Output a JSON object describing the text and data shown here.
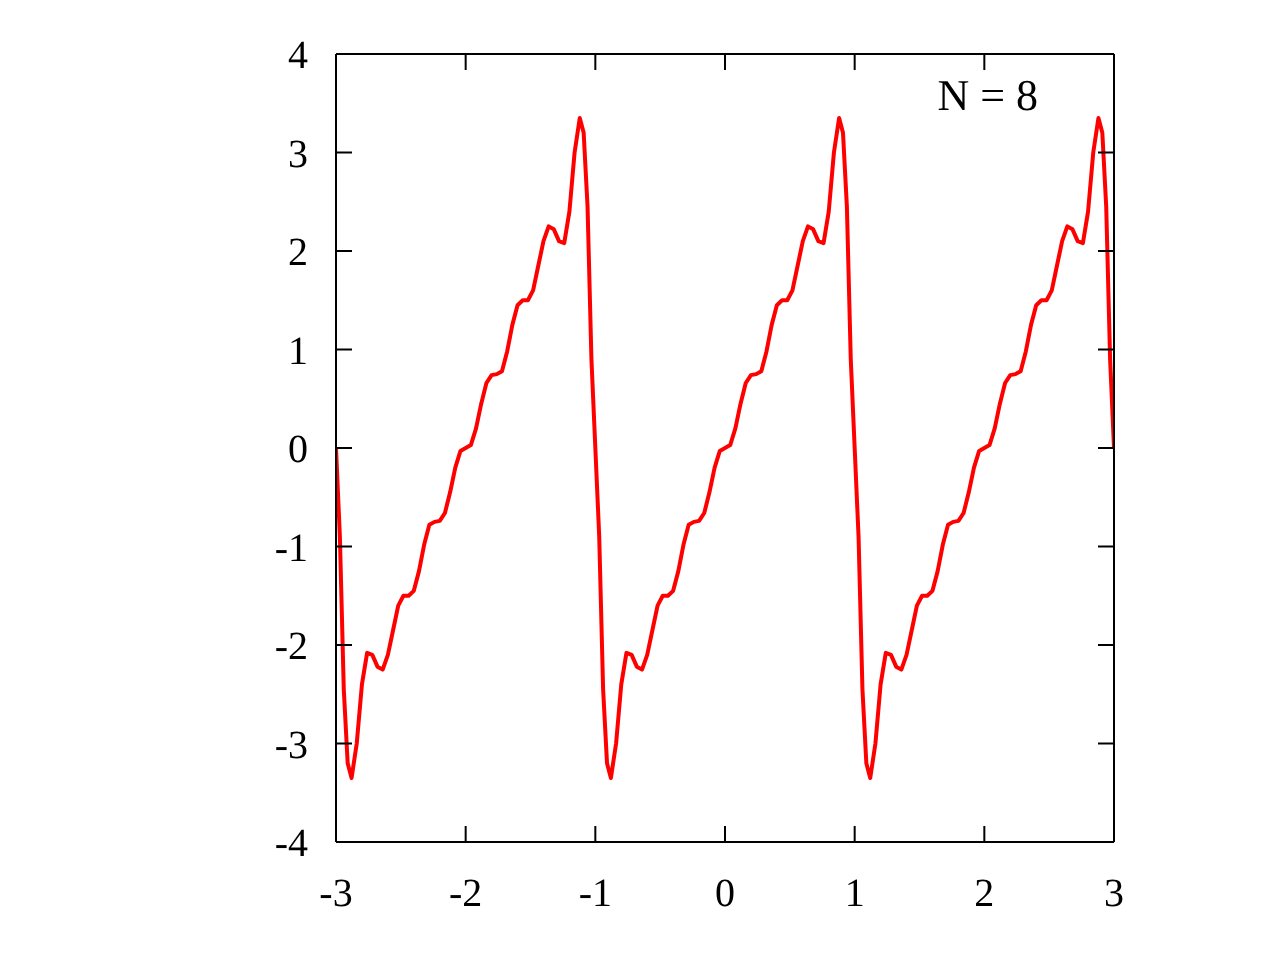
{
  "chart_data": {
    "type": "line",
    "annotations": [
      "N = 8"
    ],
    "x": [
      -3,
      -2.97,
      -2.94,
      -2.91,
      -2.88,
      -2.84,
      -2.8,
      -2.76,
      -2.72,
      -2.68,
      -2.64,
      -2.6,
      -2.56,
      -2.52,
      -2.48,
      -2.44,
      -2.4,
      -2.36,
      -2.32,
      -2.28,
      -2.24,
      -2.2,
      -2.16,
      -2.12,
      -2.08,
      -2.04,
      -2,
      -1.96,
      -1.92,
      -1.88,
      -1.84,
      -1.8,
      -1.76,
      -1.72,
      -1.68,
      -1.64,
      -1.6,
      -1.56,
      -1.52,
      -1.48,
      -1.44,
      -1.4,
      -1.36,
      -1.32,
      -1.28,
      -1.24,
      -1.2,
      -1.16,
      -1.12,
      -1.09,
      -1.06,
      -1.03,
      -1,
      -0.97,
      -0.94,
      -0.91,
      -0.88,
      -0.84,
      -0.8,
      -0.76,
      -0.72,
      -0.68,
      -0.64,
      -0.6,
      -0.56,
      -0.52,
      -0.48,
      -0.44,
      -0.4,
      -0.36,
      -0.32,
      -0.28,
      -0.24,
      -0.2,
      -0.16,
      -0.12,
      -0.08,
      -0.04,
      0,
      0.04,
      0.08,
      0.12,
      0.16,
      0.2,
      0.24,
      0.28,
      0.32,
      0.36,
      0.4,
      0.44,
      0.48,
      0.52,
      0.56,
      0.6,
      0.64,
      0.68,
      0.72,
      0.76,
      0.8,
      0.84,
      0.88,
      0.91,
      0.94,
      0.97,
      1,
      1.03,
      1.06,
      1.09,
      1.12,
      1.16,
      1.2,
      1.24,
      1.28,
      1.32,
      1.36,
      1.4,
      1.44,
      1.48,
      1.52,
      1.56,
      1.6,
      1.64,
      1.68,
      1.72,
      1.76,
      1.8,
      1.84,
      1.88,
      1.92,
      1.96,
      2,
      2.04,
      2.08,
      2.12,
      2.16,
      2.2,
      2.24,
      2.28,
      2.32,
      2.36,
      2.4,
      2.44,
      2.48,
      2.52,
      2.56,
      2.6,
      2.64,
      2.68,
      2.72,
      2.76,
      2.8,
      2.84,
      2.88,
      2.91,
      2.94,
      2.97,
      3
    ],
    "series": [
      {
        "color": "#ff0000",
        "values": [
          0,
          -0.9,
          -2.45,
          -3.2,
          -3.35,
          -3.0,
          -2.4,
          -2.08,
          -2.1,
          -2.22,
          -2.25,
          -2.1,
          -1.85,
          -1.6,
          -1.5,
          -1.5,
          -1.45,
          -1.25,
          -0.98,
          -0.78,
          -0.75,
          -0.74,
          -0.66,
          -0.45,
          -0.2,
          -0.03,
          0,
          0.03,
          0.2,
          0.45,
          0.66,
          0.74,
          0.75,
          0.78,
          0.98,
          1.25,
          1.45,
          1.5,
          1.5,
          1.6,
          1.85,
          2.1,
          2.25,
          2.22,
          2.1,
          2.08,
          2.4,
          3.0,
          3.35,
          3.2,
          2.45,
          0.9,
          0,
          -0.9,
          -2.45,
          -3.2,
          -3.35,
          -3.0,
          -2.4,
          -2.08,
          -2.1,
          -2.22,
          -2.25,
          -2.1,
          -1.85,
          -1.6,
          -1.5,
          -1.5,
          -1.45,
          -1.25,
          -0.98,
          -0.78,
          -0.75,
          -0.74,
          -0.66,
          -0.45,
          -0.2,
          -0.03,
          0,
          0.03,
          0.2,
          0.45,
          0.66,
          0.74,
          0.75,
          0.78,
          0.98,
          1.25,
          1.45,
          1.5,
          1.5,
          1.6,
          1.85,
          2.1,
          2.25,
          2.22,
          2.1,
          2.08,
          2.4,
          3.0,
          3.35,
          3.2,
          2.45,
          0.9,
          0,
          -0.9,
          -2.45,
          -3.2,
          -3.35,
          -3.0,
          -2.4,
          -2.08,
          -2.1,
          -2.22,
          -2.25,
          -2.1,
          -1.85,
          -1.6,
          -1.5,
          -1.5,
          -1.45,
          -1.25,
          -0.98,
          -0.78,
          -0.75,
          -0.74,
          -0.66,
          -0.45,
          -0.2,
          -0.03,
          0,
          0.03,
          0.2,
          0.45,
          0.66,
          0.74,
          0.75,
          0.78,
          0.98,
          1.25,
          1.45,
          1.5,
          1.5,
          1.6,
          1.85,
          2.1,
          2.25,
          2.22,
          2.1,
          2.08,
          2.4,
          3.0,
          3.35,
          3.2,
          2.45,
          0.9,
          0
        ]
      }
    ],
    "xlim": [
      -3,
      3
    ],
    "xticks": [
      -3,
      -2,
      -1,
      0,
      1,
      2,
      3
    ],
    "ylim": [
      -4,
      4
    ],
    "yticks": [
      -4,
      -3,
      -2,
      -1,
      0,
      1,
      2,
      3,
      4
    ],
    "grid": false,
    "marker": "none",
    "line_style": "solid"
  }
}
